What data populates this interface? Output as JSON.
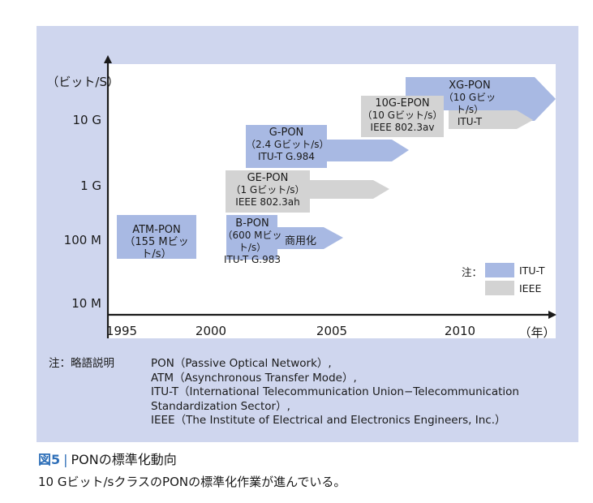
{
  "y_axis": {
    "unit": "（ビット/S）",
    "ticks": [
      "10 G",
      "1 G",
      "100 M",
      "10 M"
    ]
  },
  "x_axis": {
    "unit": "（年）",
    "ticks": [
      "1995",
      "2000",
      "2005",
      "2010"
    ]
  },
  "technologies": [
    {
      "id": "atm-pon",
      "lines": [
        "ATM-PON",
        "（155 Mビット/s）"
      ],
      "standard": "ITU-T"
    },
    {
      "id": "b-pon",
      "lines": [
        "B-PON",
        "（600 Mビット/s）",
        "ITU-T G.983"
      ],
      "standard": "ITU-T",
      "note": "商用化"
    },
    {
      "id": "ge-pon",
      "lines": [
        "GE-PON",
        "（1 Gビット/s）",
        "IEEE 802.3ah"
      ],
      "standard": "IEEE"
    },
    {
      "id": "g-pon",
      "lines": [
        "G-PON",
        "（2.4 Gビット/s）",
        "ITU-T G.984"
      ],
      "standard": "ITU-T"
    },
    {
      "id": "10g-epon",
      "lines": [
        "10G-EPON",
        "（10 Gビット/s）",
        "IEEE 802.3av"
      ],
      "standard": "IEEE"
    },
    {
      "id": "xg-pon",
      "lines": [
        "XG-PON",
        "（10 Gビット/s）",
        "ITU-T"
      ],
      "standard": "ITU-T"
    }
  ],
  "legend": {
    "prefix": "注：",
    "items": [
      {
        "label": "ITU-T",
        "color": "#a8b9e3"
      },
      {
        "label": "IEEE",
        "color": "#d3d3d3"
      }
    ]
  },
  "notes": {
    "prefix": "注：略語説明",
    "lines": [
      "PON（Passive Optical Network）,",
      "ATM（Asynchronous Transfer Mode）,",
      "ITU-T（International Telecommunication Union−Telecommunication",
      "Standardization Sector）,",
      "IEEE（The Institute of Electrical and Electronics Engineers, Inc.）"
    ]
  },
  "caption": {
    "figure_no": "図5",
    "separator": "|",
    "title": "PONの標準化動向",
    "subtitle": "10 Gビット/sクラスのPONの標準化作業が進んでいる。"
  },
  "colors": {
    "background": "#cfd6ee",
    "plot": "#ffffff",
    "itu_t": "#a8b9e3",
    "ieee": "#d3d3d3",
    "accent": "#2e6fb8"
  }
}
